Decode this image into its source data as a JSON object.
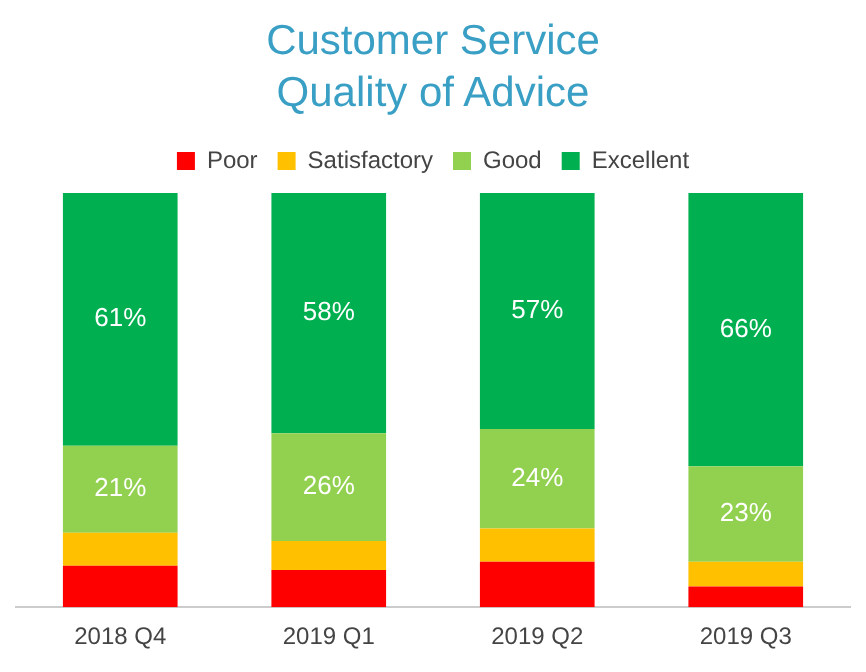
{
  "chart_data": {
    "type": "bar",
    "title": "Customer Service\nQuality of Advice",
    "categories": [
      "2018 Q4",
      "2019 Q1",
      "2019 Q2",
      "2019 Q3"
    ],
    "stacked": true,
    "legend": "top",
    "grid": false,
    "tick_labels": "x",
    "ylim": [
      0,
      100
    ],
    "series": [
      {
        "name": "Poor",
        "color": "#ff0000",
        "values": [
          10,
          9,
          11,
          5
        ]
      },
      {
        "name": "Satisfactory",
        "color": "#ffc000",
        "values": [
          8,
          7,
          8,
          6
        ]
      },
      {
        "name": "Good",
        "color": "#92d050",
        "values": [
          21,
          26,
          24,
          23
        ],
        "value_labels": [
          "21%",
          "26%",
          "24%",
          "23%"
        ]
      },
      {
        "name": "Excellent",
        "color": "#00b050",
        "values": [
          61,
          58,
          57,
          66
        ],
        "value_labels": [
          "61%",
          "58%",
          "57%",
          "66%"
        ]
      }
    ]
  }
}
